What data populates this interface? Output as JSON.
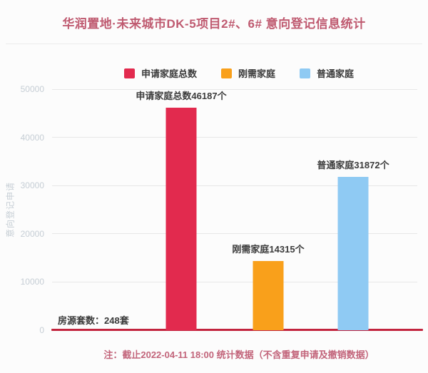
{
  "title": "华润置地·未来城市DK-5项目2#、6# 意向登记信息统计",
  "legend": [
    {
      "label": "申请家庭总数",
      "color": "#e22a4e"
    },
    {
      "label": "刚需家庭",
      "color": "#f9a01b"
    },
    {
      "label": "普通家庭",
      "color": "#8fcaf3"
    }
  ],
  "chart_data": {
    "type": "bar",
    "title": "华润置地·未来城市DK-5项目2#、6# 意向登记信息统计",
    "categories": [
      "申请家庭总数",
      "刚需家庭",
      "普通家庭"
    ],
    "series_names": [
      "total-applicant-families",
      "rigid-demand-families",
      "ordinary-families"
    ],
    "values": [
      46187,
      14315,
      31872
    ],
    "bar_labels": [
      "申请家庭总数46187个",
      "刚需家庭14315个",
      "普通家庭31872个"
    ],
    "colors": [
      "#e22a4e",
      "#f9a01b",
      "#8fcaf3"
    ],
    "xlabel": "",
    "ylabel": "意向登记申请",
    "ylim": [
      0,
      50000
    ],
    "yticks": [
      0,
      10000,
      20000,
      30000,
      40000,
      50000
    ],
    "grid": true,
    "legend_position": "top",
    "x_centers_pct": [
      33.8,
      58.2,
      82
    ],
    "baseline": {
      "label": "房源套数：248套",
      "value": 248,
      "color": "#c2243e"
    }
  },
  "footnote": "注：截止2022-04-11 18:00 统计数据（不含重复申请及撤销数据）",
  "colors": {
    "background": "#fcfcfc",
    "title_text": "#bf5a70",
    "footnote_text": "#c2647a",
    "gridline": "#e7e7e7",
    "tick_text": "#c6ced5",
    "bar_label_text": "#3c3c3c",
    "baseline_line": "#c2243e"
  }
}
